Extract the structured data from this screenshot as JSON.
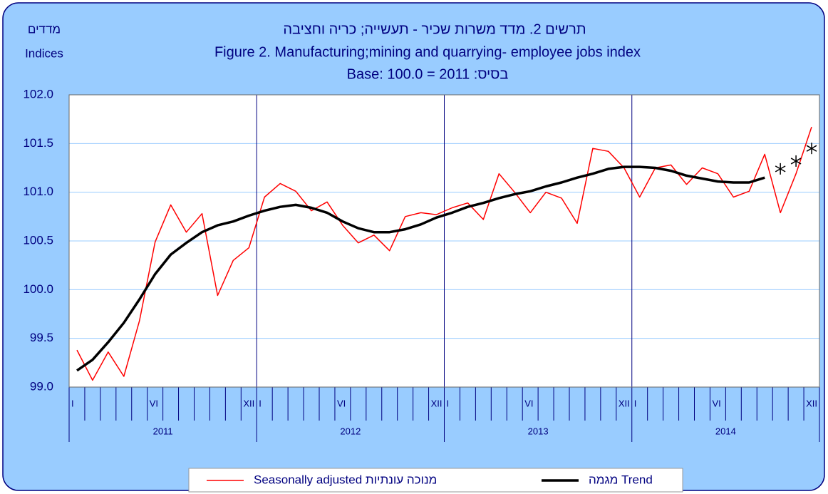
{
  "chart_data": {
    "type": "line",
    "title": "תרשים 2. מדד משרות שכיר  - תעשייה; כריה וחציבה",
    "subtitle": "Figure 2. Manufacturing;mining and quarrying- employee jobs index",
    "base_note": "Base: 100.0 = 2011 :בסיס",
    "y_label_he": "מדדים",
    "y_label_en": "Indices",
    "categories": [
      "I",
      null,
      null,
      null,
      null,
      "VI",
      null,
      null,
      null,
      null,
      null,
      "XII",
      "I",
      null,
      null,
      null,
      null,
      "VI",
      null,
      null,
      null,
      null,
      null,
      "XII",
      "I",
      null,
      null,
      null,
      null,
      "VI",
      null,
      null,
      null,
      null,
      null,
      "XII",
      "I",
      null,
      null,
      null,
      null,
      "VI",
      null,
      null,
      null,
      null,
      null,
      "XII"
    ],
    "x_groups": [
      "2011",
      "2012",
      "2013",
      "2014"
    ],
    "ylim": [
      99.0,
      102.0
    ],
    "yticks": [
      {
        "value": 99.0,
        "label": "99.0"
      },
      99.5,
      {
        "value": 100.0,
        "label": "100.0"
      },
      100.5,
      {
        "value": 101.0,
        "label": "101.0"
      },
      101.5,
      {
        "value": 102.0,
        "label": "102.0"
      }
    ],
    "grid": true,
    "legend": "bottom",
    "series": [
      {
        "name": "Seasonally adjusted מנוכה עונתיות",
        "color": "#ff0000",
        "width": 1.5,
        "values": [
          99.38,
          99.07,
          99.36,
          99.11,
          99.68,
          100.49,
          100.87,
          100.59,
          100.78,
          99.94,
          100.3,
          100.43,
          100.95,
          101.09,
          101.01,
          100.81,
          100.9,
          100.66,
          100.48,
          100.56,
          100.4,
          100.75,
          100.79,
          100.77,
          100.84,
          100.89,
          100.72,
          101.19,
          101.0,
          100.79,
          101.0,
          100.94,
          100.68,
          101.45,
          101.42,
          101.25,
          100.95,
          101.25,
          101.28,
          101.08,
          101.25,
          101.19,
          100.95,
          101.01,
          101.39,
          100.79,
          101.19,
          101.67
        ]
      },
      {
        "name": "מגמה Trend",
        "color": "#000000",
        "width": 3.5,
        "values": [
          99.17,
          99.28,
          99.46,
          99.66,
          99.9,
          100.16,
          100.36,
          100.48,
          100.59,
          100.66,
          100.7,
          100.76,
          100.81,
          100.85,
          100.87,
          100.84,
          100.79,
          100.7,
          100.63,
          100.59,
          100.59,
          100.62,
          100.67,
          100.74,
          100.79,
          100.85,
          100.89,
          100.94,
          100.98,
          101.01,
          101.06,
          101.1,
          101.15,
          101.19,
          101.24,
          101.26,
          101.26,
          101.25,
          101.22,
          101.17,
          101.14,
          101.11,
          101.1,
          101.1,
          101.15,
          null,
          null,
          null
        ]
      },
      {
        "color": "#000000",
        "marker": "asterisk",
        "values": [
          null,
          null,
          null,
          null,
          null,
          null,
          null,
          null,
          null,
          null,
          null,
          null,
          null,
          null,
          null,
          null,
          null,
          null,
          null,
          null,
          null,
          null,
          null,
          null,
          null,
          null,
          null,
          null,
          null,
          null,
          null,
          null,
          null,
          null,
          null,
          null,
          null,
          null,
          null,
          null,
          null,
          null,
          null,
          null,
          null,
          101.24,
          101.32,
          101.45
        ]
      }
    ]
  }
}
